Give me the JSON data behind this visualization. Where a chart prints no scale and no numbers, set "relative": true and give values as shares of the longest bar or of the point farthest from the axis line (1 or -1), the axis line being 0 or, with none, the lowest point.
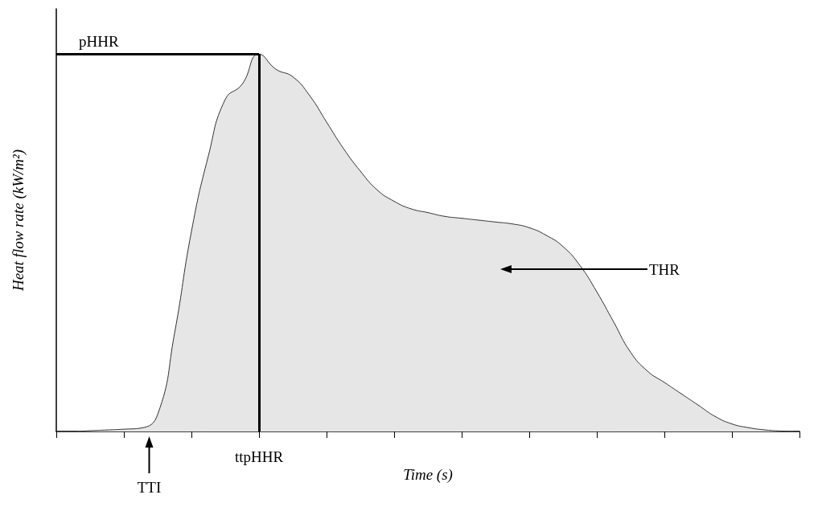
{
  "chart_data": {
    "type": "area",
    "relative": true,
    "xlabel": "Time (s)",
    "ylabel": "Heat flow rate (kW/m²)",
    "categories": [
      null,
      null,
      null,
      null,
      null,
      null,
      null,
      null,
      null,
      null,
      null,
      null,
      null,
      null,
      null,
      null,
      null,
      null,
      null,
      null,
      null,
      null,
      null,
      null,
      null,
      null,
      null,
      null,
      null,
      null,
      null,
      null,
      null,
      null,
      null,
      null,
      null,
      null,
      null,
      null,
      null,
      null,
      null,
      null,
      null
    ],
    "series": [
      {
        "color": "#e6e6e6",
        "values": [
          0,
          0,
          0.002,
          0.004,
          0.006,
          0.009,
          0.045,
          0.26,
          0.53,
          0.73,
          0.88,
          0.92,
          1,
          0.96,
          0.94,
          0.89,
          0.82,
          0.75,
          0.69,
          0.64,
          0.61,
          0.59,
          0.58,
          0.57,
          0.565,
          0.56,
          0.555,
          0.55,
          0.54,
          0.52,
          0.49,
          0.44,
          0.37,
          0.29,
          0.21,
          0.16,
          0.13,
          0.1,
          0.07,
          0.04,
          0.02,
          0.01,
          0.004,
          0.001,
          0
        ]
      }
    ],
    "ref_lines": [
      {
        "axis": "y",
        "value": 1,
        "label": "pHHR",
        "color": "#000000"
      }
    ],
    "annotations": [
      "ttpHHR",
      "TTI",
      "THR"
    ]
  }
}
